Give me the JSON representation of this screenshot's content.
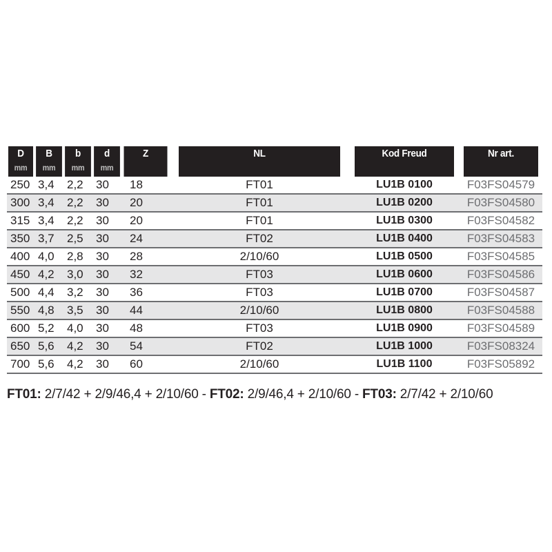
{
  "table": {
    "headers": [
      "D",
      "B",
      "b",
      "d",
      "Z",
      "NL",
      "Kod Freud",
      "Nr art."
    ],
    "units": [
      "mm",
      "mm",
      "mm",
      "mm",
      "",
      "",
      "",
      ""
    ],
    "rows": [
      [
        "250",
        "3,4",
        "2,2",
        "30",
        "18",
        "FT01",
        "LU1B 0100",
        "F03FS04579"
      ],
      [
        "300",
        "3,4",
        "2,2",
        "30",
        "20",
        "FT01",
        "LU1B 0200",
        "F03FS04580"
      ],
      [
        "315",
        "3,4",
        "2,2",
        "30",
        "20",
        "FT01",
        "LU1B 0300",
        "F03FS04582"
      ],
      [
        "350",
        "3,7",
        "2,5",
        "30",
        "24",
        "FT02",
        "LU1B 0400",
        "F03FS04583"
      ],
      [
        "400",
        "4,0",
        "2,8",
        "30",
        "28",
        "2/10/60",
        "LU1B 0500",
        "F03FS04585"
      ],
      [
        "450",
        "4,2",
        "3,0",
        "30",
        "32",
        "FT03",
        "LU1B 0600",
        "F03FS04586"
      ],
      [
        "500",
        "4,4",
        "3,2",
        "30",
        "36",
        "FT03",
        "LU1B 0700",
        "F03FS04587"
      ],
      [
        "550",
        "4,8",
        "3,5",
        "30",
        "44",
        "2/10/60",
        "LU1B 0800",
        "F03FS04588"
      ],
      [
        "600",
        "5,2",
        "4,0",
        "30",
        "48",
        "FT03",
        "LU1B 0900",
        "F03FS04589"
      ],
      [
        "650",
        "5,6",
        "4,2",
        "30",
        "54",
        "FT02",
        "LU1B 1000",
        "F03FS08324"
      ],
      [
        "700",
        "5,6",
        "4,2",
        "30",
        "60",
        "2/10/60",
        "LU1B 1100",
        "F03FS05892"
      ]
    ]
  },
  "footnote": {
    "ft01_label": "FT01:",
    "ft01_value": " 2/7/42 + 2/9/46,4 + 2/10/60 - ",
    "ft02_label": "FT02:",
    "ft02_value": " 2/9/46,4 + 2/10/60 - ",
    "ft03_label": "FT03:",
    "ft03_value": " 2/7/42 + 2/10/60"
  },
  "colors": {
    "header_bg": "#231f20",
    "alt_row": "#e6e6e7",
    "separator": "#6d6e71"
  }
}
